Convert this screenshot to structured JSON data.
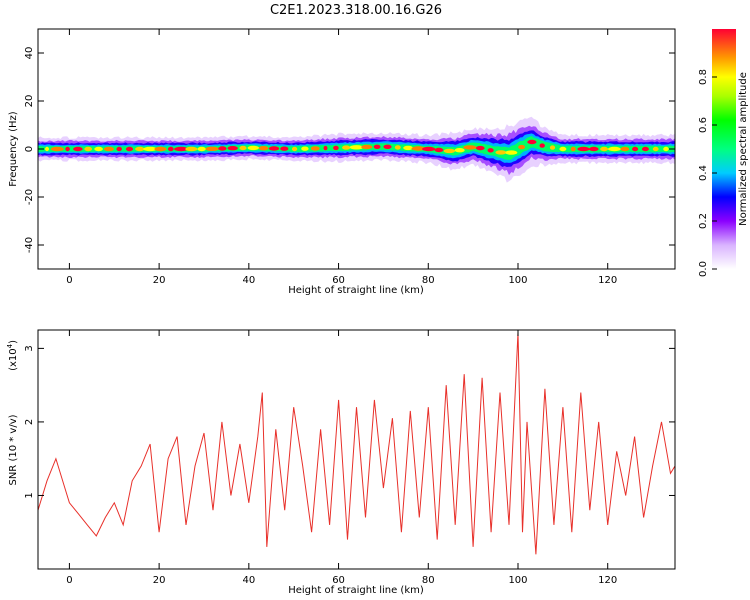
{
  "figure": {
    "title": "C2E1.2023.318.00.16.G26"
  },
  "chart_data": [
    {
      "type": "heatmap",
      "title": "C2E1.2023.318.00.16.G26",
      "xlabel": "Height of straight line (km)",
      "ylabel": "Frequency (Hz)",
      "xlim": [
        -7,
        135
      ],
      "ylim": [
        -50,
        50
      ],
      "xticks": [
        0,
        20,
        40,
        60,
        80,
        100,
        120
      ],
      "yticks": [
        -40,
        -20,
        0,
        20,
        40
      ],
      "colorbar": {
        "label": "Normalized spectral amplitude",
        "range": [
          0,
          1
        ],
        "ticks": [
          "0.0",
          "0.2",
          "0.4",
          "0.6",
          "0.8"
        ],
        "colors": [
          "#ffffff",
          "#8b00ff",
          "#0000ff",
          "#00ffff",
          "#00ff00",
          "#ffff00",
          "#ff8000",
          "#ff0000"
        ]
      },
      "ridge": {
        "description_center_hz": 0,
        "x": [
          -7,
          0,
          10,
          20,
          30,
          40,
          50,
          60,
          70,
          80,
          86,
          90,
          95,
          98,
          100,
          103,
          106,
          110,
          120,
          135
        ],
        "center": [
          0,
          0,
          0,
          0,
          0,
          0.5,
          0,
          0.5,
          1,
          0,
          -1,
          1,
          -1,
          -2,
          0,
          3,
          1,
          0,
          0,
          0
        ],
        "halfwidth": [
          2.5,
          2.5,
          2.5,
          2.5,
          2.5,
          2.5,
          2.5,
          3,
          3,
          3,
          4,
          4,
          5,
          6,
          6,
          5,
          4,
          3,
          3,
          3
        ]
      }
    },
    {
      "type": "line",
      "xlabel": "Height of straight line (km)",
      "ylabel": "SNR (10 * v/v)",
      "yscale_label": "(x10",
      "yscale_exp": "4",
      "xlim": [
        -7,
        135
      ],
      "ylim": [
        0,
        3.25
      ],
      "xticks": [
        0,
        20,
        40,
        60,
        80,
        100,
        120
      ],
      "yticks": [
        1,
        2,
        3
      ],
      "color": "#e8302a",
      "series": [
        {
          "x": [
            -7,
            -5,
            -3,
            -1,
            0,
            2,
            4,
            6,
            8,
            10,
            12,
            14,
            16,
            18,
            19,
            20,
            22,
            24,
            26,
            28,
            30,
            32,
            34,
            36,
            38,
            40,
            42,
            43,
            44,
            46,
            48,
            50,
            52,
            54,
            56,
            58,
            60,
            62,
            64,
            66,
            68,
            70,
            72,
            74,
            76,
            78,
            80,
            82,
            84,
            86,
            88,
            90,
            92,
            94,
            96,
            98,
            99,
            100,
            101,
            102,
            104,
            106,
            108,
            110,
            112,
            114,
            116,
            118,
            120,
            122,
            124,
            126,
            128,
            130,
            132,
            134,
            135
          ],
          "values": [
            0.8,
            1.2,
            1.5,
            1.1,
            0.9,
            0.75,
            0.6,
            0.45,
            0.7,
            0.9,
            0.6,
            1.2,
            1.4,
            1.7,
            1.1,
            0.5,
            1.5,
            1.8,
            0.6,
            1.4,
            1.85,
            0.8,
            2.0,
            1.0,
            1.7,
            0.9,
            1.8,
            2.4,
            0.3,
            1.9,
            0.8,
            2.2,
            1.4,
            0.5,
            1.9,
            0.6,
            2.3,
            0.4,
            2.2,
            0.7,
            2.3,
            1.1,
            2.05,
            0.5,
            2.15,
            0.7,
            2.2,
            0.4,
            2.5,
            0.6,
            2.65,
            0.3,
            2.6,
            0.5,
            2.4,
            0.6,
            1.9,
            3.22,
            0.5,
            2.0,
            0.2,
            2.45,
            0.6,
            2.2,
            0.5,
            2.4,
            0.8,
            2.0,
            0.6,
            1.6,
            1.0,
            1.8,
            0.7,
            1.4,
            2.0,
            1.3,
            1.4
          ]
        }
      ]
    }
  ]
}
